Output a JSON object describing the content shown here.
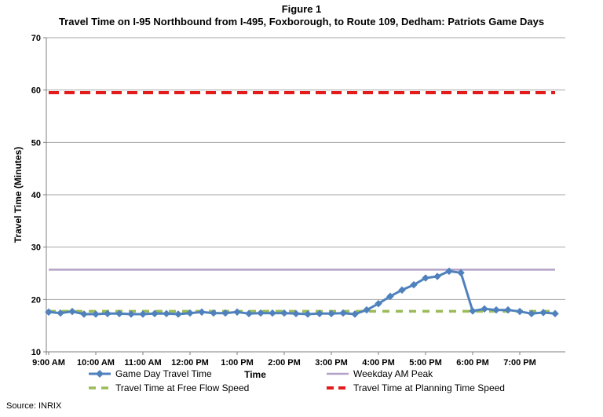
{
  "figure": {
    "title_line1": "Figure 1",
    "title_line2": "Travel Time on I-95 Northbound from I-495, Foxborough, to Route 109, Dedham: Patriots Game Days",
    "source": "Source: INRIX"
  },
  "chart_data": {
    "type": "line",
    "title": "Travel Time on I-95 Northbound from I-495, Foxborough, to Route 109, Dedham: Patriots Game Days",
    "xlabel": "Time",
    "ylabel": "Travel Time (Minutes)",
    "ylim": [
      10,
      70
    ],
    "ytick_interval": 10,
    "ytick_labels": [
      "10",
      "20",
      "30",
      "40",
      "50",
      "60",
      "70"
    ],
    "x_axis_hours": [
      9,
      19
    ],
    "x_tick_labels": [
      "9:00 AM",
      "10:00 AM",
      "11:00 AM",
      "12:00 PM",
      "1:00 PM",
      "2:00 PM",
      "3:00 PM",
      "4:00 PM",
      "5:00 PM",
      "6:00 PM",
      "7:00 PM"
    ],
    "grid": "horizontal",
    "legend_position": "bottom",
    "series": [
      {
        "name": "Game Day Travel Time",
        "color": "#4F81BD",
        "style": "solid",
        "marker": "diamond",
        "x_start_hour": 9.0,
        "x_interval_minutes": 15,
        "values": [
          17.6,
          17.4,
          17.7,
          17.2,
          17.2,
          17.3,
          17.3,
          17.2,
          17.2,
          17.3,
          17.3,
          17.2,
          17.4,
          17.6,
          17.4,
          17.4,
          17.6,
          17.3,
          17.4,
          17.4,
          17.4,
          17.3,
          17.2,
          17.3,
          17.3,
          17.4,
          17.2,
          18.0,
          19.2,
          20.6,
          21.8,
          22.8,
          24.1,
          24.4,
          25.4,
          25.1,
          17.8,
          18.2,
          18.0,
          18.0,
          17.7,
          17.3,
          17.5,
          17.3
        ]
      },
      {
        "name": "Weekday AM Peak",
        "color": "#B2A1C7",
        "style": "solid",
        "marker": "none",
        "constant_value": 25.7
      },
      {
        "name": "Travel Time at Free Flow Speed",
        "color": "#9BBB59",
        "style": "dashed",
        "marker": "none",
        "constant_value": 17.75
      },
      {
        "name": "Travel Time at Planning Time Speed",
        "color": "#E31B1B",
        "style": "dashed",
        "marker": "none",
        "constant_value": 59.5
      }
    ],
    "axis_color": "#7F7F7F",
    "gridline_color": "#A6A6A6"
  }
}
